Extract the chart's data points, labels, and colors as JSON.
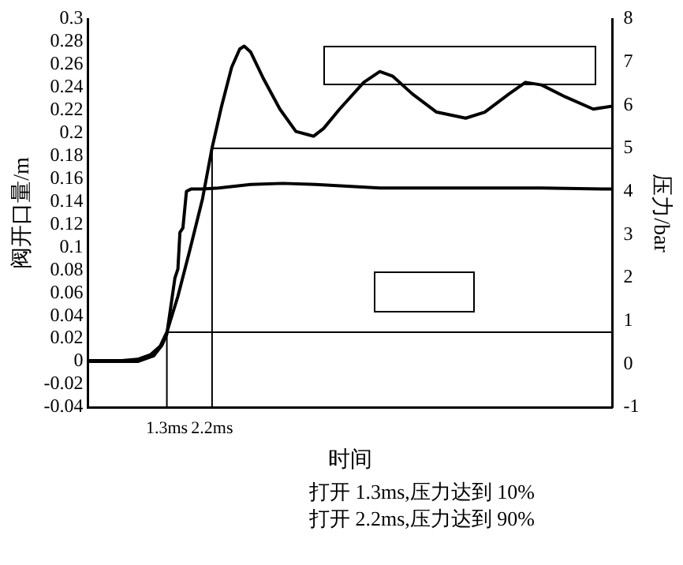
{
  "chart_data": {
    "type": "line",
    "xlabel": "时间",
    "ylabel": "阀开口量/m",
    "y2label": "压力/bar",
    "annotations": [
      "打开 1.3ms,压力达到 10%",
      "打开 2.2ms,压力达到 90%"
    ],
    "xlim": [
      -0.27,
      10.17
    ],
    "xticks": [
      {
        "value": 1.3,
        "label": "1.3ms"
      },
      {
        "value": 2.2,
        "label": "2.2ms"
      }
    ],
    "ylim": [
      -0.04,
      0.3
    ],
    "yticks": [
      -0.04,
      -0.02,
      0,
      0.02,
      0.04,
      0.06,
      0.08,
      0.1,
      0.12,
      0.14,
      0.16,
      0.18,
      0.2,
      0.22,
      0.24,
      0.26,
      0.28,
      0.3
    ],
    "y2lim": [
      -1,
      8
    ],
    "y2ticks": [
      -1,
      0,
      1,
      2,
      3,
      4,
      5,
      6,
      7,
      8
    ],
    "grid": false,
    "legend": false,
    "marker": "none",
    "line_style": "solid",
    "series": [
      {
        "color": "#000000",
        "axis": "y2",
        "x": [
          -0.27,
          0.4,
          0.72,
          0.98,
          1.17,
          1.3,
          1.52,
          1.75,
          2.01,
          2.2,
          2.39,
          2.59,
          2.75,
          2.84,
          2.97,
          3.23,
          3.55,
          3.87,
          4.1,
          4.22,
          4.42,
          4.74,
          5.22,
          5.54,
          5.8,
          6.19,
          6.67,
          7.25,
          7.63,
          8.11,
          8.44,
          8.76,
          9.24,
          9.79,
          10.17
        ],
        "values": [
          0.08,
          0.08,
          0.11,
          0.22,
          0.42,
          0.74,
          1.57,
          2.61,
          3.83,
          5.01,
          5.98,
          6.88,
          7.3,
          7.37,
          7.23,
          6.6,
          5.91,
          5.39,
          5.32,
          5.28,
          5.46,
          5.91,
          6.53,
          6.78,
          6.67,
          6.26,
          5.84,
          5.7,
          5.84,
          6.26,
          6.53,
          6.47,
          6.19,
          5.91,
          5.98
        ]
      },
      {
        "color": "#000000",
        "axis": "y",
        "x": [
          -0.27,
          0.72,
          1.04,
          1.2,
          1.3,
          1.46,
          1.52,
          1.56,
          1.62,
          1.69,
          1.78,
          2.01,
          2.33,
          2.97,
          3.61,
          4.26,
          5.54,
          7.15,
          8.76,
          10.17
        ],
        "values": [
          0,
          0,
          0.005,
          0.014,
          0.024,
          0.073,
          0.081,
          0.113,
          0.117,
          0.149,
          0.151,
          0.151,
          0.152,
          0.155,
          0.156,
          0.155,
          0.152,
          0.152,
          0.152,
          0.151
        ]
      },
      {
        "color": "#000000",
        "axis": "y2",
        "x": [
          1.3,
          1.3,
          10.17
        ],
        "values": [
          -1,
          0.74,
          0.74
        ]
      },
      {
        "color": "#000000",
        "axis": "y2",
        "x": [
          2.2,
          2.2,
          10.17
        ],
        "values": [
          -1,
          5,
          5
        ]
      }
    ]
  }
}
